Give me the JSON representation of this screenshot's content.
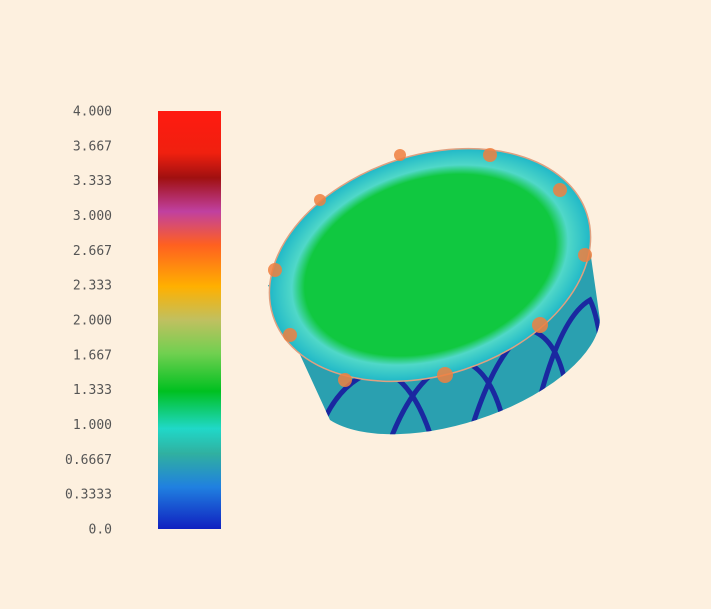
{
  "colorbar": {
    "tick_labels": [
      "4.000",
      "3.667",
      "3.333",
      "3.000",
      "2.667",
      "2.333",
      "2.000",
      "1.667",
      "1.333",
      "1.000",
      "0.6667",
      "0.3333",
      "0.0"
    ]
  }
}
